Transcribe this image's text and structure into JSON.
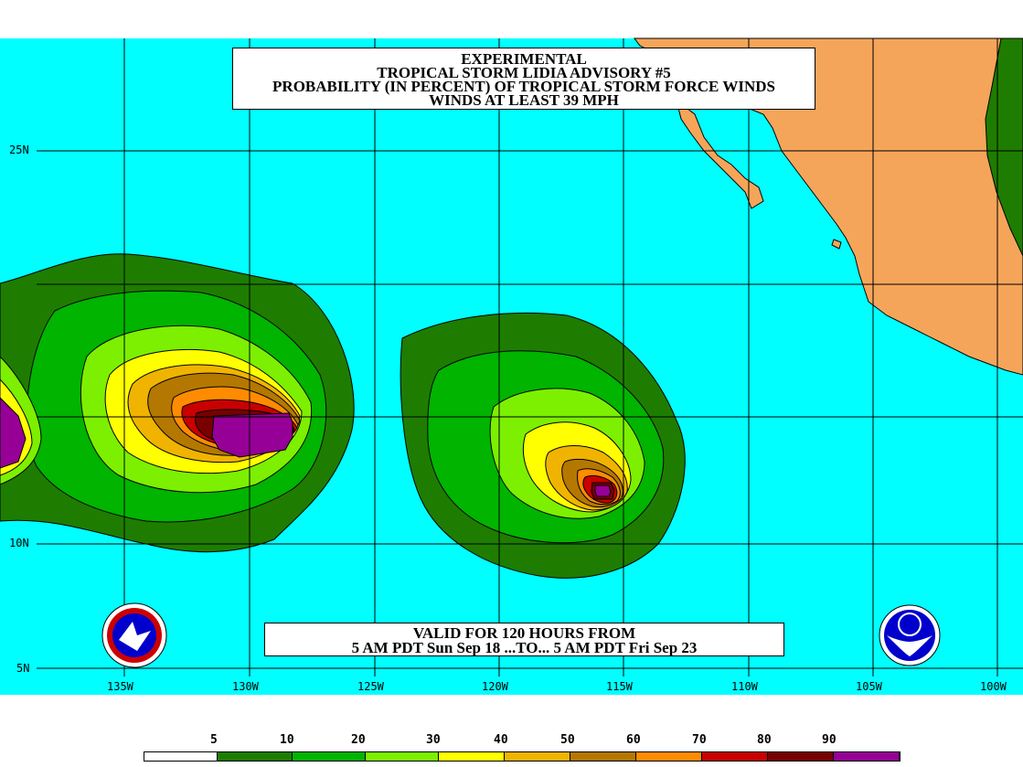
{
  "title": {
    "line1": "EXPERIMENTAL",
    "line2": "TROPICAL STORM LIDIA ADVISORY #5",
    "line3": "PROBABILITY (IN PERCENT) OF TROPICAL STORM FORCE WINDS",
    "line4": "WINDS AT LEAST 39 MPH"
  },
  "validity": {
    "line1": "VALID FOR 120 HOURS FROM",
    "line2": "5 AM PDT Sun Sep 18 ...TO... 5 AM PDT Fri Sep 23"
  },
  "axes": {
    "latitudes": [
      "25N",
      "10N",
      "5N"
    ],
    "longitudes": [
      "135W",
      "130W",
      "125W",
      "120W",
      "115W",
      "110W",
      "105W",
      "100W"
    ]
  },
  "legend": {
    "labels": [
      "5",
      "10",
      "20",
      "30",
      "40",
      "50",
      "60",
      "70",
      "80",
      "90"
    ],
    "colors": [
      "#ffffff",
      "#1e7d00",
      "#00b400",
      "#7cf000",
      "#ffff00",
      "#f0b400",
      "#b47800",
      "#ff8c00",
      "#c80000",
      "#780000",
      "#960096"
    ]
  },
  "colors": {
    "ocean": "#00ffff",
    "land": "#f5a55a",
    "land_green": "#1e7d00"
  },
  "logos": {
    "left": "nws-logo",
    "right": "noaa-logo"
  }
}
